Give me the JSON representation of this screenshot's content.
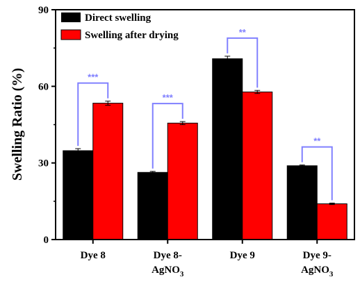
{
  "chart_data": {
    "type": "bar",
    "ylabel": "Swelling Ratio (%)",
    "xlabel": "",
    "ylim": [
      0,
      90
    ],
    "yticks": [
      0,
      30,
      60,
      90
    ],
    "categories": [
      {
        "main": "Dye 8",
        "line2": "",
        "sub": ""
      },
      {
        "main": "Dye 8-",
        "line2": "AgNO",
        "sub": "3"
      },
      {
        "main": "Dye 9",
        "line2": "",
        "sub": ""
      },
      {
        "main": "Dye 9-",
        "line2": "AgNO",
        "sub": "3"
      }
    ],
    "series": [
      {
        "name": "Direct swelling",
        "color": "#000000",
        "values": [
          34.8,
          26.3,
          70.8,
          28.9
        ],
        "errors": [
          0.8,
          0.4,
          1.0,
          0.3
        ]
      },
      {
        "name": "Swelling after drying",
        "color": "#ff0000",
        "values": [
          53.4,
          45.6,
          57.8,
          14.0
        ],
        "errors": [
          0.8,
          0.6,
          0.6,
          0.3
        ]
      }
    ],
    "significance": [
      "***",
      "***",
      "**",
      "**"
    ],
    "significance_color": "#8080ff",
    "legend_position": "top-left"
  }
}
